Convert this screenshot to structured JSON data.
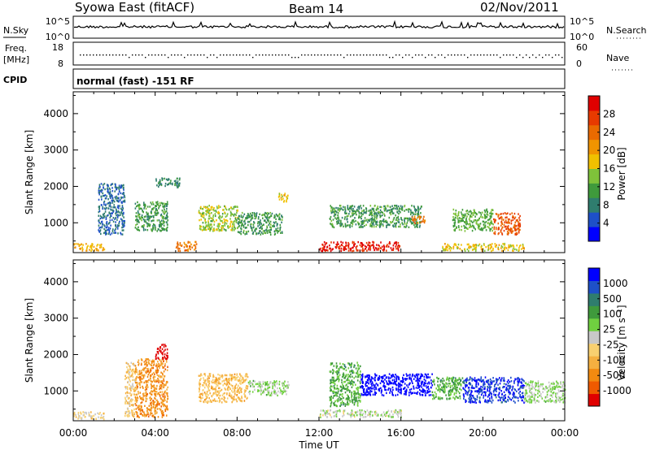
{
  "header": {
    "title": "Syowa East (fitACF)",
    "beam": "Beam 14",
    "date": "02/Nov/2011"
  },
  "noise_panel": {
    "left_label": "N.Sky",
    "right_label": "N.Search",
    "left_ticks": [
      "10^5",
      "10^0"
    ],
    "right_ticks": [
      "10^5",
      "10^0"
    ]
  },
  "freq_panel": {
    "left_label_line1": "Freq.",
    "left_label_line2": "[MHz]",
    "left_ticks": [
      "18",
      "8"
    ],
    "right_label": "Nave",
    "right_ticks": [
      "60",
      "0"
    ]
  },
  "cpid_panel": {
    "left_label": "CPID",
    "text": "normal (fast) -151 RF"
  },
  "power_panel": {
    "ylabel": "Slant Range [km]",
    "y_ticks": [
      "1000",
      "2000",
      "3000",
      "4000"
    ],
    "y_values": [
      1000,
      2000,
      3000,
      4000
    ],
    "y_range": [
      180,
      4600
    ],
    "colorbar_label": "Power [dB]",
    "colorbar_ticks": [
      "4",
      "8",
      "12",
      "16",
      "20",
      "24",
      "28"
    ],
    "colorbar_colors": [
      "#0000ff",
      "#1e50c8",
      "#2f7d6e",
      "#3f9a3c",
      "#7fc23a",
      "#f0c000",
      "#f09400",
      "#ea6a00",
      "#e83a00",
      "#e00000"
    ]
  },
  "velocity_panel": {
    "ylabel": "Slant Range [km]",
    "y_ticks": [
      "1000",
      "2000",
      "3000",
      "4000"
    ],
    "y_values": [
      1000,
      2000,
      3000,
      4000
    ],
    "y_range": [
      180,
      4600
    ],
    "colorbar_label": "Velocity [m s⁻¹]",
    "colorbar_ticks": [
      "-1000",
      "-500",
      "-100",
      "-25",
      "25",
      "100",
      "500",
      "1000"
    ],
    "colorbar_colors": [
      "#e00000",
      "#ef5a00",
      "#f28a10",
      "#f5b040",
      "#f8d070",
      "#c8c8c8",
      "#70d040",
      "#3f9a3c",
      "#2f7d6e",
      "#1e50c8",
      "#0000ff"
    ]
  },
  "xaxis": {
    "label": "Time UT",
    "ticks": [
      "00:00",
      "04:00",
      "08:00",
      "12:00",
      "16:00",
      "20:00",
      "00:00"
    ],
    "tick_hours": [
      0,
      4,
      8,
      12,
      16,
      20,
      24
    ],
    "range_hours": [
      0,
      24
    ]
  },
  "chart_data": [
    {
      "type": "line",
      "title": "Syowa East (fitACF)",
      "panel": "noise",
      "ylabel": "N.Sky",
      "y2label": "N.Search",
      "yscale": "log",
      "ylim": [
        1,
        100000
      ],
      "xlim": [
        0,
        24
      ],
      "series": [
        {
          "name": "N.Sky",
          "x": [
            0,
            3,
            6,
            9,
            12,
            15,
            18,
            21,
            24
          ],
          "y": [
            3000,
            3000,
            3000,
            3000,
            3000,
            3000,
            3000,
            3000,
            3000
          ]
        }
      ]
    },
    {
      "type": "scatter",
      "panel": "frequency",
      "ylabel": "Freq. [MHz]",
      "y2label": "Nave",
      "ylim": [
        8,
        18
      ],
      "xlim": [
        0,
        24
      ],
      "series": [
        {
          "name": "Freq.",
          "x": [
            0,
            6,
            12,
            18,
            24
          ],
          "y": [
            12,
            12,
            12,
            12,
            12
          ]
        }
      ]
    },
    {
      "type": "heatmap",
      "panel": "power",
      "ylabel": "Slant Range [km]",
      "xlabel": "Time UT",
      "colorbar_label": "Power [dB]",
      "xlim": [
        0,
        24
      ],
      "ylim": [
        180,
        4600
      ],
      "colorbar_range": [
        0,
        30
      ],
      "regions": [
        {
          "x": [
            0.0,
            1.5
          ],
          "y": [
            250,
            450
          ],
          "value": 18
        },
        {
          "x": [
            1.2,
            2.5
          ],
          "y": [
            700,
            2100
          ],
          "value": 6
        },
        {
          "x": [
            3.0,
            4.6
          ],
          "y": [
            800,
            1600
          ],
          "value": 10
        },
        {
          "x": [
            4.0,
            5.2
          ],
          "y": [
            2000,
            2250
          ],
          "value": 8
        },
        {
          "x": [
            5.0,
            6.0
          ],
          "y": [
            250,
            500
          ],
          "value": 22
        },
        {
          "x": [
            6.1,
            8.0
          ],
          "y": [
            800,
            1500
          ],
          "value": 14
        },
        {
          "x": [
            8.0,
            10.2
          ],
          "y": [
            700,
            1300
          ],
          "value": 10
        },
        {
          "x": [
            10.0,
            10.5
          ],
          "y": [
            1600,
            1850
          ],
          "value": 16
        },
        {
          "x": [
            12.0,
            16.0
          ],
          "y": [
            250,
            500
          ],
          "value": 28
        },
        {
          "x": [
            12.5,
            17.0
          ],
          "y": [
            900,
            1500
          ],
          "value": 10
        },
        {
          "x": [
            16.5,
            17.2
          ],
          "y": [
            1000,
            1200
          ],
          "value": 22
        },
        {
          "x": [
            18.5,
            20.5
          ],
          "y": [
            800,
            1400
          ],
          "value": 12
        },
        {
          "x": [
            20.5,
            21.8
          ],
          "y": [
            700,
            1300
          ],
          "value": 24
        },
        {
          "x": [
            18.0,
            22.0
          ],
          "y": [
            250,
            450
          ],
          "value": 16
        }
      ]
    },
    {
      "type": "heatmap",
      "panel": "velocity",
      "ylabel": "Slant Range [km]",
      "xlabel": "Time UT",
      "colorbar_label": "Velocity [m s⁻¹]",
      "xlim": [
        0,
        24
      ],
      "ylim": [
        180,
        4600
      ],
      "colorbar_range": [
        -1000,
        1000
      ],
      "regions": [
        {
          "x": [
            0.0,
            1.5
          ],
          "y": [
            250,
            450
          ],
          "value": -100
        },
        {
          "x": [
            2.5,
            3.0
          ],
          "y": [
            300,
            1800
          ],
          "value": -200
        },
        {
          "x": [
            3.0,
            4.6
          ],
          "y": [
            300,
            1900
          ],
          "value": -500
        },
        {
          "x": [
            4.0,
            4.6
          ],
          "y": [
            1900,
            2300
          ],
          "value": -1000
        },
        {
          "x": [
            6.1,
            8.5
          ],
          "y": [
            700,
            1500
          ],
          "value": -300
        },
        {
          "x": [
            8.5,
            10.5
          ],
          "y": [
            900,
            1300
          ],
          "value": 100
        },
        {
          "x": [
            12.0,
            16.0
          ],
          "y": [
            300,
            500
          ],
          "value": 50
        },
        {
          "x": [
            12.5,
            14.0
          ],
          "y": [
            600,
            1800
          ],
          "value": 300
        },
        {
          "x": [
            14.0,
            17.5
          ],
          "y": [
            900,
            1500
          ],
          "value": 1000
        },
        {
          "x": [
            17.5,
            19.0
          ],
          "y": [
            800,
            1400
          ],
          "value": 300
        },
        {
          "x": [
            19.0,
            22.0
          ],
          "y": [
            700,
            1400
          ],
          "value": 800
        },
        {
          "x": [
            22.0,
            24.0
          ],
          "y": [
            700,
            1300
          ],
          "value": 100
        }
      ]
    }
  ]
}
